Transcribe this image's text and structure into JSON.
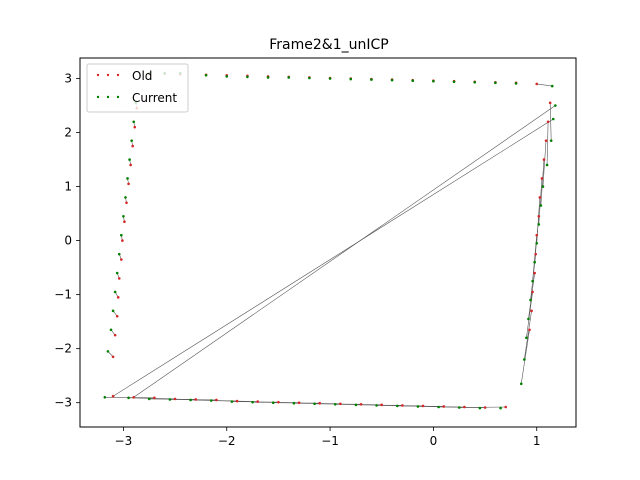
{
  "chart_data": {
    "type": "scatter",
    "title": "Frame2&1_unICP",
    "xlabel": "",
    "ylabel": "",
    "xlim": [
      -3.42,
      1.38
    ],
    "ylim": [
      -3.45,
      3.38
    ],
    "x_ticks": [
      -3,
      -2,
      -1,
      0,
      1
    ],
    "y_ticks": [
      -3,
      -2,
      -1,
      0,
      1,
      2,
      3
    ],
    "x_tick_labels": [
      "−3",
      "−2",
      "−1",
      "0",
      "1"
    ],
    "y_tick_labels": [
      "−3",
      "−2",
      "−1",
      "0",
      "1",
      "2",
      "3"
    ],
    "grid": false,
    "legend_position": "top-left",
    "series": [
      {
        "name": "Old",
        "color": "#d62728",
        "points": [
          [
            -2.75,
            3.08
          ],
          [
            -2.6,
            3.09
          ],
          [
            -2.45,
            3.08
          ],
          [
            -2.2,
            3.07
          ],
          [
            -2.0,
            3.06
          ],
          [
            -1.8,
            3.05
          ],
          [
            -1.6,
            3.04
          ],
          [
            -1.4,
            3.03
          ],
          [
            -1.2,
            3.02
          ],
          [
            -1.0,
            3.01
          ],
          [
            -0.8,
            3.0
          ],
          [
            -0.6,
            2.99
          ],
          [
            -0.4,
            2.98
          ],
          [
            -0.2,
            2.97
          ],
          [
            0.0,
            2.96
          ],
          [
            0.2,
            2.95
          ],
          [
            0.4,
            2.94
          ],
          [
            0.6,
            2.93
          ],
          [
            0.8,
            2.92
          ],
          [
            1.0,
            2.9
          ],
          [
            -3.1,
            -2.15
          ],
          [
            -3.08,
            -1.75
          ],
          [
            -3.06,
            -1.4
          ],
          [
            -3.05,
            -1.05
          ],
          [
            -3.04,
            -0.7
          ],
          [
            -3.02,
            -0.35
          ],
          [
            -3.01,
            0.0
          ],
          [
            -2.99,
            0.35
          ],
          [
            -2.97,
            0.7
          ],
          [
            -2.95,
            1.05
          ],
          [
            -2.93,
            1.4
          ],
          [
            -2.91,
            1.75
          ],
          [
            -2.89,
            2.1
          ],
          [
            -2.87,
            2.45
          ],
          [
            0.93,
            -1.65
          ],
          [
            0.95,
            -1.3
          ],
          [
            0.96,
            -0.95
          ],
          [
            0.98,
            -0.6
          ],
          [
            0.99,
            -0.25
          ],
          [
            1.0,
            0.1
          ],
          [
            1.02,
            0.45
          ],
          [
            1.03,
            0.8
          ],
          [
            1.05,
            1.15
          ],
          [
            1.07,
            1.5
          ],
          [
            1.09,
            1.85
          ],
          [
            1.11,
            2.2
          ],
          [
            1.13,
            2.55
          ],
          [
            -3.1,
            -2.88
          ],
          [
            -2.9,
            -2.9
          ],
          [
            -2.7,
            -2.91
          ],
          [
            -2.5,
            -2.93
          ],
          [
            -2.3,
            -2.94
          ],
          [
            -2.1,
            -2.95
          ],
          [
            -1.9,
            -2.97
          ],
          [
            -1.7,
            -2.98
          ],
          [
            -1.5,
            -2.99
          ],
          [
            -1.3,
            -3.0
          ],
          [
            -1.1,
            -3.01
          ],
          [
            -0.9,
            -3.02
          ],
          [
            -0.7,
            -3.03
          ],
          [
            -0.5,
            -3.04
          ],
          [
            -0.3,
            -3.05
          ],
          [
            -0.1,
            -3.06
          ],
          [
            0.1,
            -3.07
          ],
          [
            0.3,
            -3.08
          ],
          [
            0.5,
            -3.09
          ],
          [
            0.7,
            -3.08
          ]
        ]
      },
      {
        "name": "Current",
        "color": "#008000",
        "points": [
          [
            -2.75,
            3.1
          ],
          [
            -2.6,
            3.1
          ],
          [
            -2.45,
            3.1
          ],
          [
            -2.2,
            3.06
          ],
          [
            -2.0,
            3.04
          ],
          [
            -1.8,
            3.03
          ],
          [
            -1.6,
            3.02
          ],
          [
            -1.4,
            3.02
          ],
          [
            -1.2,
            3.01
          ],
          [
            -1.0,
            3.0
          ],
          [
            -0.8,
            2.99
          ],
          [
            -0.6,
            2.98
          ],
          [
            -0.4,
            2.97
          ],
          [
            -0.2,
            2.96
          ],
          [
            0.0,
            2.95
          ],
          [
            0.2,
            2.94
          ],
          [
            0.4,
            2.93
          ],
          [
            0.6,
            2.92
          ],
          [
            0.8,
            2.91
          ],
          [
            1.15,
            2.86
          ],
          [
            -3.15,
            -2.05
          ],
          [
            -3.12,
            -1.65
          ],
          [
            -3.1,
            -1.3
          ],
          [
            -3.08,
            -0.95
          ],
          [
            -3.06,
            -0.6
          ],
          [
            -3.04,
            -0.25
          ],
          [
            -3.02,
            0.1
          ],
          [
            -3.0,
            0.45
          ],
          [
            -2.98,
            0.8
          ],
          [
            -2.96,
            1.15
          ],
          [
            -2.94,
            1.5
          ],
          [
            -2.92,
            1.85
          ],
          [
            -2.9,
            2.2
          ],
          [
            -2.88,
            2.55
          ],
          [
            0.85,
            -2.65
          ],
          [
            0.88,
            -2.2
          ],
          [
            0.9,
            -1.8
          ],
          [
            0.92,
            -1.45
          ],
          [
            0.94,
            -1.1
          ],
          [
            0.96,
            -0.75
          ],
          [
            0.98,
            -0.4
          ],
          [
            1.0,
            -0.05
          ],
          [
            1.02,
            0.3
          ],
          [
            1.04,
            0.65
          ],
          [
            1.06,
            1.0
          ],
          [
            1.1,
            1.4
          ],
          [
            1.14,
            1.85
          ],
          [
            1.16,
            2.25
          ],
          [
            1.18,
            2.5
          ],
          [
            -3.18,
            -2.9
          ],
          [
            -2.95,
            -2.91
          ],
          [
            -2.75,
            -2.93
          ],
          [
            -2.55,
            -2.94
          ],
          [
            -2.35,
            -2.95
          ],
          [
            -2.15,
            -2.96
          ],
          [
            -1.95,
            -2.98
          ],
          [
            -1.75,
            -2.99
          ],
          [
            -1.55,
            -3.0
          ],
          [
            -1.35,
            -3.01
          ],
          [
            -1.15,
            -3.02
          ],
          [
            -0.95,
            -3.03
          ],
          [
            -0.75,
            -3.04
          ],
          [
            -0.55,
            -3.05
          ],
          [
            -0.35,
            -3.06
          ],
          [
            -0.15,
            -3.07
          ],
          [
            0.05,
            -3.08
          ],
          [
            0.25,
            -3.09
          ],
          [
            0.45,
            -3.1
          ],
          [
            0.65,
            -3.1
          ]
        ]
      }
    ]
  }
}
